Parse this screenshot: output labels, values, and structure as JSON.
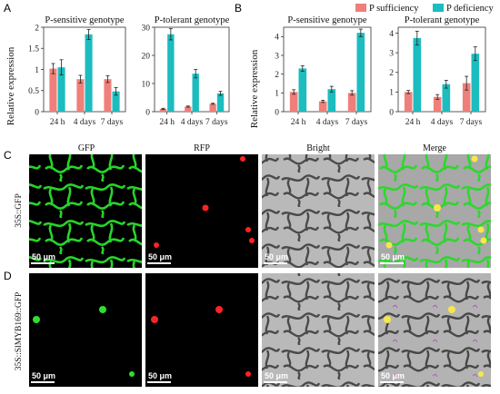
{
  "colors": {
    "sufficiency": "#ef7f7a",
    "deficiency": "#1cbcbf"
  },
  "panel_labels": {
    "a": "A",
    "b": "B",
    "c": "C",
    "d": "D"
  },
  "legend": {
    "sufficiency": "P sufficiency",
    "deficiency": "P deficiency"
  },
  "ylabel": "Relative expression",
  "image_titles": [
    "GFP",
    "RFP",
    "Bright",
    "Merge"
  ],
  "row_labels": {
    "c": "35S::GFP",
    "d": "35S::SlMYB169::GFP"
  },
  "scale_bar": "50 μm",
  "chart_data": [
    {
      "type": "bar",
      "panel": "A",
      "title": "P-sensitive genotype",
      "categories": [
        "24 h",
        "4 days",
        "7 days"
      ],
      "ylim": [
        0,
        2
      ],
      "yticks": [
        "0",
        "0.5",
        "1",
        "1.5",
        "2"
      ],
      "series": [
        {
          "name": "P sufficiency",
          "values": [
            1.02,
            0.77,
            0.77
          ],
          "errors": [
            0.12,
            0.09,
            0.08
          ]
        },
        {
          "name": "P deficiency",
          "values": [
            1.05,
            1.83,
            0.48
          ],
          "errors": [
            0.18,
            0.12,
            0.09
          ]
        }
      ]
    },
    {
      "type": "bar",
      "panel": "A",
      "title": "P-tolerant genotype",
      "categories": [
        "24 h",
        "4 days",
        "7 days"
      ],
      "ylim": [
        0,
        30
      ],
      "yticks": [
        "0",
        "10",
        "20",
        "30"
      ],
      "series": [
        {
          "name": "P sufficiency",
          "values": [
            1.0,
            1.8,
            2.8
          ],
          "errors": [
            0.2,
            0.2,
            0.2
          ]
        },
        {
          "name": "P deficiency",
          "values": [
            27.5,
            13.5,
            6.5
          ],
          "errors": [
            2.0,
            1.5,
            0.7
          ]
        }
      ]
    },
    {
      "type": "bar",
      "panel": "B",
      "title": "P-sensitive genotype",
      "categories": [
        "24 h",
        "4 days",
        "7 days"
      ],
      "ylim": [
        0,
        4.5
      ],
      "yticks": [
        "0",
        "1",
        "2",
        "3",
        "4"
      ],
      "series": [
        {
          "name": "P sufficiency",
          "values": [
            1.05,
            0.55,
            1.0
          ],
          "errors": [
            0.12,
            0.06,
            0.12
          ]
        },
        {
          "name": "P deficiency",
          "values": [
            2.3,
            1.2,
            4.2
          ],
          "errors": [
            0.15,
            0.15,
            0.2
          ]
        }
      ]
    },
    {
      "type": "bar",
      "panel": "B",
      "title": "P-tolerant genotype",
      "categories": [
        "24 h",
        "4 days",
        "7 days"
      ],
      "ylim": [
        0,
        4.3
      ],
      "yticks": [
        "0",
        "1",
        "2",
        "3",
        "4"
      ],
      "series": [
        {
          "name": "P sufficiency",
          "values": [
            1.0,
            0.75,
            1.45
          ],
          "errors": [
            0.08,
            0.12,
            0.35
          ]
        },
        {
          "name": "P deficiency",
          "values": [
            3.75,
            1.4,
            2.95
          ],
          "errors": [
            0.35,
            0.2,
            0.35
          ]
        }
      ]
    }
  ]
}
